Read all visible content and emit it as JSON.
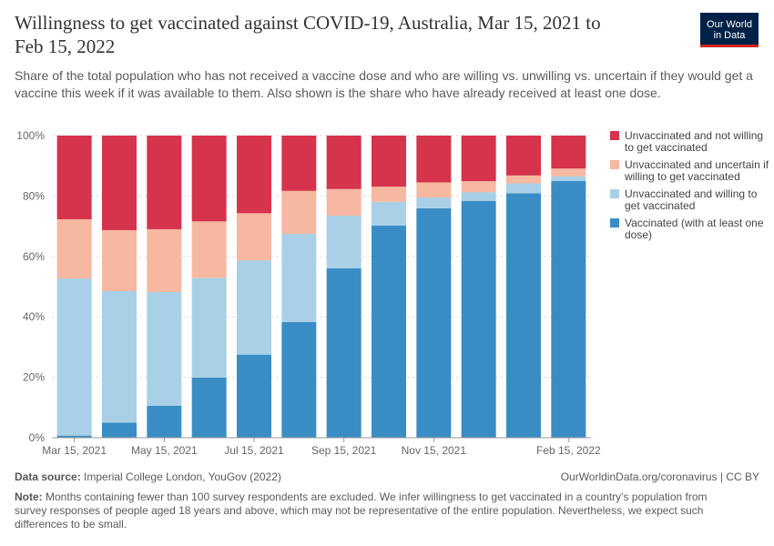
{
  "header": {
    "title": "Willingness to get vaccinated against COVID-19, Australia, Mar 15, 2021 to Feb 15, 2022",
    "subtitle": "Share of the total population who has not received a vaccine dose and who are willing vs. unwilling vs. uncertain if they would get a vaccine this week if it was available to them. Also shown is the share who have already received at least one dose.",
    "logo_line1": "Our World",
    "logo_line2": "in Data"
  },
  "footer": {
    "source_label": "Data source:",
    "source_text": "Imperial College London, YouGov (2022)",
    "right_text": "OurWorldinData.org/coronavirus | CC BY",
    "note_label": "Note:",
    "note_text": "Months containing fewer than 100 survey respondents are excluded. We infer willingness to get vaccinated in a country's population from survey responses of people aged 18 years and above, which may not be representative of the entire population. Nevertheless, we expect such differences to be small."
  },
  "colors": {
    "vaccinated": "#3a8dc4",
    "willing": "#a9d0e6",
    "uncertain": "#f6b8a0",
    "unwilling": "#d6334c"
  },
  "chart_data": {
    "type": "bar",
    "stacked": true,
    "categories": [
      "2021-03-15",
      "2021-04-15",
      "2021-05-15",
      "2021-06-15",
      "2021-07-15",
      "2021-08-15",
      "2021-09-15",
      "2021-10-15",
      "2021-11-15",
      "2021-12-15",
      "2022-01-15",
      "2022-02-15"
    ],
    "x_tick_labels": [
      "Mar 15, 2021",
      "May 15, 2021",
      "Jul 15, 2021",
      "Sep 15, 2021",
      "Nov 15, 2021",
      "Feb 15, 2022"
    ],
    "x_tick_indices": [
      0,
      2,
      4,
      6,
      8,
      11
    ],
    "y_tick_labels": [
      "0%",
      "20%",
      "40%",
      "60%",
      "80%",
      "100%"
    ],
    "ylim": [
      0,
      100
    ],
    "grid": true,
    "legend_position": "right",
    "series": [
      {
        "name": "Vaccinated (with at least one dose)",
        "key": "vaccinated",
        "values": [
          0.7,
          5.0,
          10.6,
          19.9,
          27.5,
          38.3,
          56.1,
          70.2,
          75.9,
          78.4,
          80.9,
          85.0
        ]
      },
      {
        "name": "Unvaccinated and willing to get vaccinated",
        "key": "willing",
        "values": [
          52.0,
          43.5,
          37.6,
          33.0,
          31.2,
          29.2,
          17.4,
          7.9,
          3.6,
          2.9,
          3.3,
          1.5
        ]
      },
      {
        "name": "Unvaccinated and uncertain if willing to get vaccinated",
        "key": "uncertain",
        "values": [
          19.6,
          20.2,
          20.8,
          18.7,
          15.6,
          14.2,
          8.8,
          5.0,
          5.0,
          3.6,
          2.6,
          2.6
        ]
      },
      {
        "name": "Unvaccinated and not willing to get vaccinated",
        "key": "unwilling",
        "values": [
          27.7,
          31.3,
          31.0,
          28.4,
          25.7,
          18.3,
          17.7,
          16.9,
          15.5,
          15.1,
          13.2,
          10.9
        ]
      }
    ]
  }
}
